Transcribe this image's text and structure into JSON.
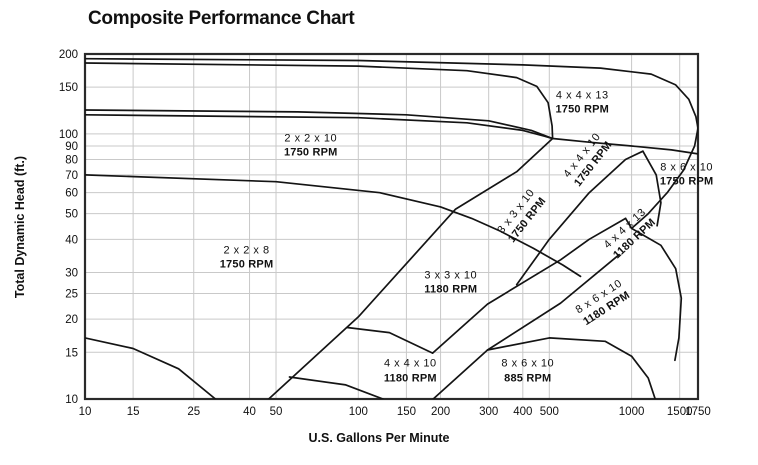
{
  "page_title": "Composite Performance Chart",
  "colors": {
    "background": "#ffffff",
    "grid": "#c9c9c9",
    "border": "#2a2a2a",
    "curve": "#141414",
    "text": "#111111"
  },
  "chart_data": {
    "type": "line",
    "title": "Composite Performance Chart",
    "xlabel": "U.S. Gallons Per Minute",
    "ylabel": "Total Dynamic Head (ft.)",
    "x_scale": "log",
    "y_scale": "log",
    "xlim": [
      10,
      1750
    ],
    "ylim": [
      10,
      200
    ],
    "grid": true,
    "x_ticks": [
      10,
      15,
      25,
      40,
      50,
      100,
      150,
      200,
      300,
      400,
      500,
      1000,
      1500,
      1750
    ],
    "y_ticks": [
      10,
      15,
      20,
      25,
      30,
      40,
      50,
      60,
      70,
      80,
      90,
      100,
      150,
      200
    ],
    "envelope_labels": [
      {
        "size": "4 x 4 x 13",
        "rpm": "1750 RPM",
        "q": 660,
        "h": 131,
        "rot": 0
      },
      {
        "size": "2 x 2 x 10",
        "rpm": "1750 RPM",
        "q": 67,
        "h": 90,
        "rot": 0
      },
      {
        "size": "2 x 2 x 8",
        "rpm": "1750 RPM",
        "q": 39,
        "h": 34,
        "rot": 0
      },
      {
        "size": "8 x 6 x 10",
        "rpm": "1750 RPM",
        "q": 1590,
        "h": 70,
        "rot": 0
      },
      {
        "size": "3 x 3 x 10",
        "rpm": "1750 RPM",
        "q": 398,
        "h": 49,
        "rot": -52
      },
      {
        "size": "4 x 4 x 10",
        "rpm": "1750 RPM",
        "q": 692,
        "h": 80,
        "rot": -52
      },
      {
        "size": "4 x 4 x 13",
        "rpm": "1180 RPM",
        "q": 983,
        "h": 42,
        "rot": -43
      },
      {
        "size": "3 x 3 x 10",
        "rpm": "1180 RPM",
        "q": 218,
        "h": 27.5,
        "rot": 0
      },
      {
        "size": "8 x 6 x 10",
        "rpm": "1180 RPM",
        "q": 786,
        "h": 23,
        "rot": -33
      },
      {
        "size": "4 x 4 x 10",
        "rpm": "1180 RPM",
        "q": 155,
        "h": 12.7,
        "rot": 0
      },
      {
        "size": "8 x 6 x 10",
        "rpm": "885 RPM",
        "q": 417,
        "h": 12.7,
        "rot": 0
      }
    ],
    "curves": [
      {
        "name": "4x4x13-1750-max-head-curve",
        "points": [
          [
            10,
            192
          ],
          [
            100,
            189
          ],
          [
            400,
            182
          ],
          [
            770,
            177
          ],
          [
            1180,
            168
          ],
          [
            1450,
            153
          ],
          [
            1620,
            135
          ],
          [
            1720,
            116
          ],
          [
            1750,
            105
          ]
        ]
      },
      {
        "name": "4x4x13-1750-runout-edge",
        "points": [
          [
            1750,
            105
          ],
          [
            1700,
            90
          ],
          [
            1550,
            73
          ],
          [
            1350,
            60
          ],
          [
            1150,
            50
          ],
          [
            1000,
            44
          ]
        ]
      },
      {
        "name": "upper-second-head-curve",
        "points": [
          [
            10,
            185
          ],
          [
            100,
            180
          ],
          [
            250,
            173
          ],
          [
            380,
            163
          ],
          [
            450,
            151
          ],
          [
            495,
            131
          ],
          [
            512,
            107
          ],
          [
            514,
            96
          ]
        ]
      },
      {
        "name": "2x2x10-1750-max-head-curve",
        "points": [
          [
            10,
            123
          ],
          [
            60,
            121
          ],
          [
            150,
            118
          ],
          [
            300,
            112
          ],
          [
            430,
            103
          ],
          [
            514,
            96
          ]
        ]
      },
      {
        "name": "2x2x10-1750-second-head-curve",
        "points": [
          [
            10,
            118
          ],
          [
            100,
            115
          ],
          [
            250,
            110
          ],
          [
            400,
            103
          ],
          [
            480,
            98
          ],
          [
            514,
            96
          ]
        ]
      },
      {
        "name": "8x6x10-1750-top-curve",
        "points": [
          [
            514,
            96
          ],
          [
            700,
            93
          ],
          [
            1000,
            90
          ],
          [
            1400,
            87
          ],
          [
            1750,
            84
          ]
        ]
      },
      {
        "name": "70ft-shared-curve",
        "points": [
          [
            10,
            70
          ],
          [
            50,
            66
          ],
          [
            120,
            60
          ],
          [
            200,
            53
          ],
          [
            260,
            48
          ],
          [
            330,
            43
          ],
          [
            437,
            37
          ],
          [
            560,
            32
          ],
          [
            650,
            29
          ]
        ]
      },
      {
        "name": "2x2x8-1750-min-curve",
        "points": [
          [
            10,
            17
          ],
          [
            15,
            15.5
          ],
          [
            22,
            13
          ],
          [
            30,
            10
          ]
        ]
      },
      {
        "name": "3x3x10-min-flow-diagonal",
        "points": [
          [
            47,
            10
          ],
          [
            100,
            20.4
          ],
          [
            227,
            52
          ],
          [
            380,
            72
          ],
          [
            514,
            96
          ]
        ]
      },
      {
        "name": "4x4x10-1180-top-curve",
        "points": [
          [
            91,
            18.6
          ],
          [
            130,
            17.8
          ],
          [
            187,
            14.9
          ]
        ]
      },
      {
        "name": "4x4x10-1180-min-curve",
        "points": [
          [
            56,
            12.1
          ],
          [
            90,
            11.3
          ],
          [
            123,
            10
          ]
        ]
      },
      {
        "name": "8x6x10-1180-min-flow-diagonal",
        "points": [
          [
            187,
            14.9
          ],
          [
            297,
            22.8
          ],
          [
            550,
            33.5
          ],
          [
            700,
            40
          ],
          [
            951,
            48
          ]
        ]
      },
      {
        "name": "8x6x10-885-min-flow-diagonal",
        "points": [
          [
            188,
            10
          ],
          [
            297,
            15.3
          ],
          [
            550,
            23
          ],
          [
            900,
            35
          ]
        ]
      },
      {
        "name": "8x6x10-885-top-curve",
        "points": [
          [
            297,
            15.3
          ],
          [
            500,
            17
          ],
          [
            800,
            16.5
          ],
          [
            1000,
            14.5
          ],
          [
            1150,
            12
          ],
          [
            1220,
            10
          ]
        ]
      },
      {
        "name": "8x6x10-1180-top-and-runout",
        "points": [
          [
            951,
            48
          ],
          [
            1000,
            44
          ],
          [
            1280,
            38
          ],
          [
            1450,
            31
          ],
          [
            1520,
            24
          ],
          [
            1490,
            17
          ],
          [
            1440,
            14
          ]
        ]
      },
      {
        "name": "4x4x13-1180-band-edge",
        "points": [
          [
            380,
            27
          ],
          [
            500,
            40
          ],
          [
            700,
            60
          ],
          [
            950,
            80
          ],
          [
            1100,
            86
          ]
        ]
      },
      {
        "name": "4x4x13-1180-right-closure",
        "points": [
          [
            1100,
            86
          ],
          [
            1230,
            70
          ],
          [
            1280,
            55
          ],
          [
            1240,
            45
          ]
        ]
      }
    ]
  }
}
